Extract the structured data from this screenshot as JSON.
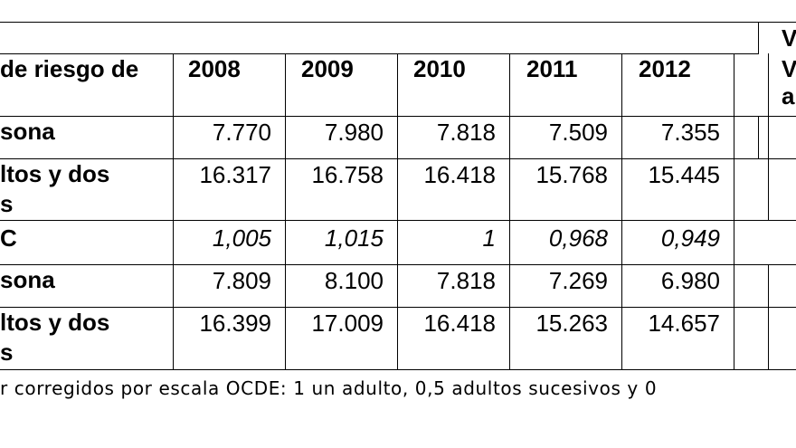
{
  "table": {
    "header": {
      "label": "de riesgo de",
      "years": [
        "2008",
        "2009",
        "2010",
        "2011",
        "2012"
      ],
      "last_col_top": "V",
      "last_col_line2": "V",
      "last_col_line3": "a"
    },
    "rows": [
      {
        "label": [
          "sona"
        ],
        "values": [
          "7.770",
          "7.980",
          "7.818",
          "7.509",
          "7.355"
        ],
        "italic": false
      },
      {
        "label": [
          "ltos y dos",
          "s"
        ],
        "values": [
          "16.317",
          "16.758",
          "16.418",
          "15.768",
          "15.445"
        ],
        "italic": false
      },
      {
        "label": [
          "C"
        ],
        "values": [
          "1,005",
          "1,015",
          "1",
          "0,968",
          "0,949"
        ],
        "italic": true
      },
      {
        "label": [
          "sona"
        ],
        "values": [
          "7.809",
          "8.100",
          "7.818",
          "7.269",
          "6.980"
        ],
        "italic": false
      },
      {
        "label": [
          "ltos y dos",
          "s"
        ],
        "values": [
          "16.399",
          "17.009",
          "16.418",
          "15.263",
          "14.657"
        ],
        "italic": false
      }
    ]
  },
  "footnote": "r corregidos por escala OCDE: 1 un adulto, 0,5 adultos sucesivos y 0"
}
